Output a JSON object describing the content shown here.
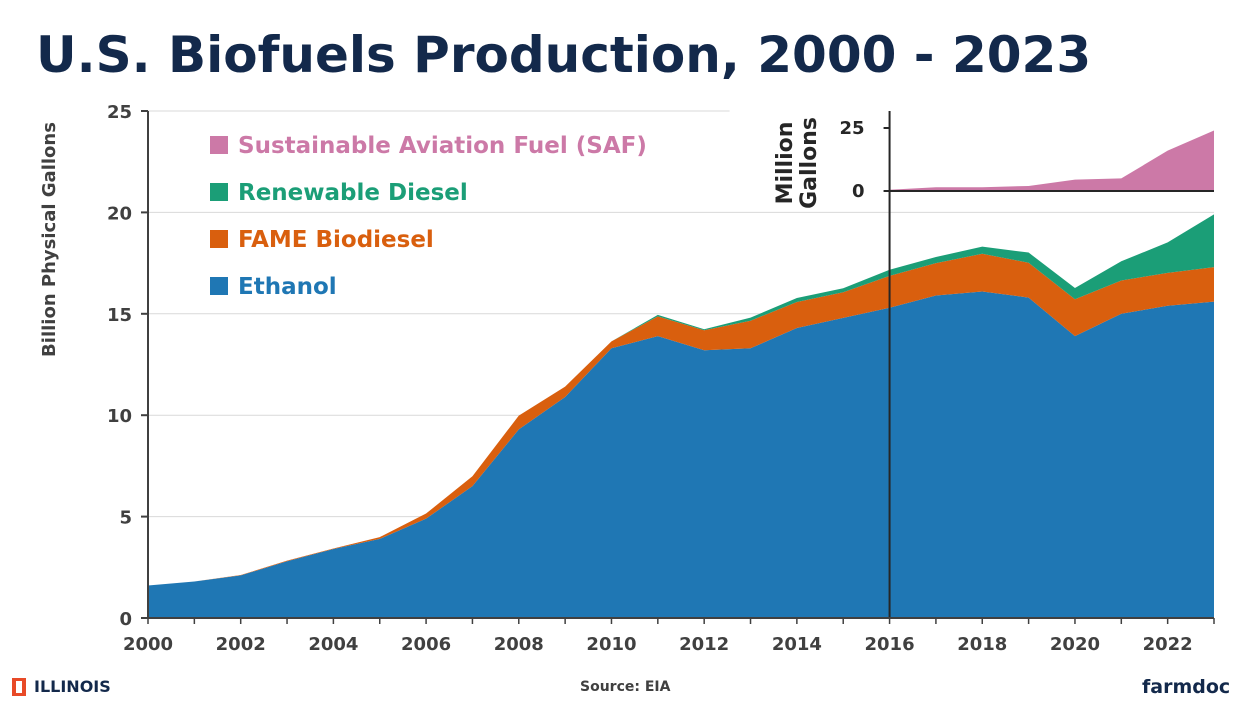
{
  "title": "U.S. Biofuels Production, 2000 - 2023",
  "footer": {
    "institution": "ILLINOIS",
    "source": "Source: EIA",
    "brand": "farmdoc"
  },
  "chart_data": [
    {
      "type": "area",
      "stacked": true,
      "ylabel": "Billion Physical Gallons",
      "ylim": [
        0,
        25
      ],
      "yticks": [
        "0",
        "5",
        "10",
        "15",
        "20",
        "25"
      ],
      "xticks": [
        "2000",
        "2002",
        "2004",
        "2006",
        "2008",
        "2010",
        "2012",
        "2014",
        "2016",
        "2018",
        "2020",
        "2022"
      ],
      "x": [
        2000,
        2001,
        2002,
        2003,
        2004,
        2005,
        2006,
        2007,
        2008,
        2009,
        2010,
        2011,
        2012,
        2013,
        2014,
        2015,
        2016,
        2017,
        2018,
        2019,
        2020,
        2021,
        2022,
        2023
      ],
      "legend": {
        "placement": "top-left",
        "entries": [
          "Sustainable Aviation Fuel (SAF)",
          "Renewable Diesel",
          "FAME Biodiesel",
          "Ethanol"
        ]
      },
      "series": [
        {
          "name": "Ethanol",
          "color": "#1f77b4",
          "values": [
            1.6,
            1.8,
            2.1,
            2.8,
            3.4,
            3.9,
            4.9,
            6.5,
            9.3,
            10.9,
            13.3,
            13.9,
            13.2,
            13.3,
            14.3,
            14.8,
            15.3,
            15.9,
            16.1,
            15.8,
            13.9,
            15.0,
            15.4,
            15.6
          ]
        },
        {
          "name": "FAME Biodiesel",
          "color": "#d95f0e",
          "values": [
            0.0,
            0.0,
            0.02,
            0.03,
            0.03,
            0.09,
            0.25,
            0.49,
            0.68,
            0.51,
            0.34,
            0.97,
            0.99,
            1.36,
            1.28,
            1.26,
            1.57,
            1.6,
            1.86,
            1.72,
            1.82,
            1.64,
            1.62,
            1.7
          ]
        },
        {
          "name": "Renewable Diesel",
          "color": "#1b9e77",
          "values": [
            0.0,
            0.0,
            0.0,
            0.0,
            0.0,
            0.0,
            0.0,
            0.0,
            0.0,
            0.0,
            0.0,
            0.08,
            0.05,
            0.15,
            0.2,
            0.2,
            0.3,
            0.3,
            0.35,
            0.5,
            0.55,
            0.95,
            1.5,
            2.6
          ]
        }
      ],
      "grid": true
    },
    {
      "type": "area",
      "inset": true,
      "placement": "top-right",
      "ylabel": "Million Gallons",
      "yticks": [
        "0",
        "25"
      ],
      "ylim": [
        0,
        25
      ],
      "x": [
        2016,
        2017,
        2018,
        2019,
        2020,
        2021,
        2022,
        2023
      ],
      "series": [
        {
          "name": "Sustainable Aviation Fuel (SAF)",
          "color": "#cc79a7",
          "values": [
            0.5,
            1.5,
            1.5,
            2.0,
            4.5,
            5.0,
            16.0,
            24.0
          ]
        }
      ]
    }
  ]
}
